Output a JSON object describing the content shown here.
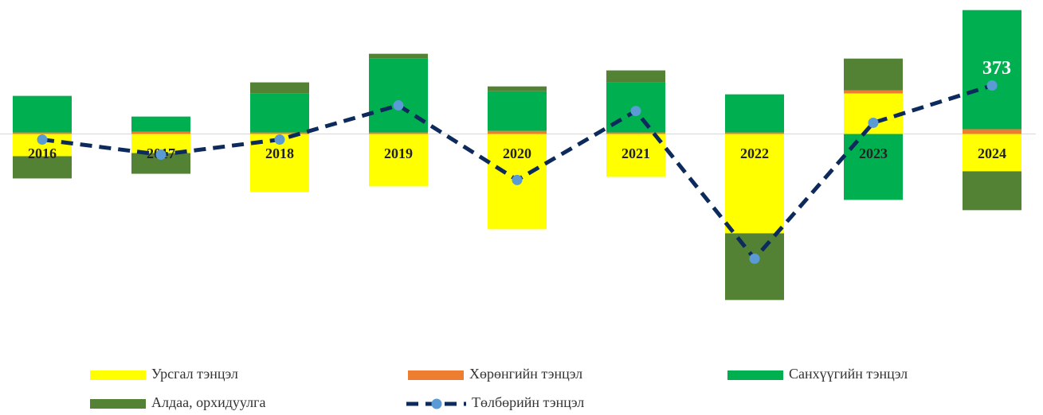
{
  "chart_data": {
    "type": "stacked_bar_line",
    "categories": [
      "2016",
      "2017",
      "2018",
      "2019",
      "2020",
      "2021",
      "2022",
      "2023",
      "2024"
    ],
    "series": [
      {
        "name": "Урсгал тэнцэл",
        "color": "#ffff00",
        "values": [
          -171,
          -147,
          -446,
          -403,
          -733,
          -330,
          -764,
          312,
          -287
        ]
      },
      {
        "name": "Хөрөнгийн тэнцэл",
        "color": "#ed7d31",
        "values": [
          12,
          18,
          12,
          12,
          24,
          12,
          12,
          24,
          37
        ]
      },
      {
        "name": "Санхүүгийн тэнцэл",
        "color": "#00b050",
        "values": [
          281,
          116,
          299,
          568,
          305,
          385,
          293,
          -507,
          916
        ]
      },
      {
        "name": "Алдаа, орхидуулга",
        "color": "#548235",
        "values": [
          -171,
          -159,
          86,
          37,
          37,
          92,
          -513,
          244,
          -299
        ]
      },
      {
        "name": "Төлбөрийн тэнцэл",
        "color": "#0d2a5c",
        "marker_color": "#5b9bd5",
        "type": "line",
        "values": [
          -43,
          -159,
          -43,
          220,
          -354,
          177,
          -959,
          86,
          373
        ]
      }
    ],
    "show_value_label": "last",
    "ylim": [
      -1550,
      1000
    ]
  }
}
